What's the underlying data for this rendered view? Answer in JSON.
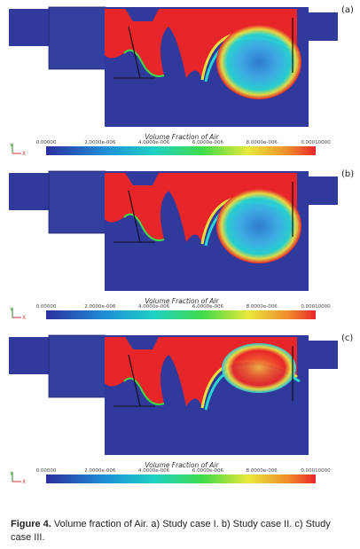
{
  "panels": [
    {
      "label": "(a)",
      "legend_title": "Volume Fraction of Air",
      "legend_ticks": [
        "0.00000",
        "2.0000e-006",
        "4.0000e-006",
        "6.0000e-006",
        "8.0000e-006",
        "0.00010000"
      ],
      "axes": [
        "Y",
        "X"
      ]
    },
    {
      "label": "(b)",
      "legend_title": "Volume Fraction of Air",
      "legend_ticks": [
        "0.00000",
        "2.0000e-006",
        "4.0000e-006",
        "6.0000e-006",
        "8.0000e-006",
        "0.00010000"
      ],
      "axes": [
        "Y",
        "X"
      ]
    },
    {
      "label": "(c)",
      "legend_title": "Volume Fraction of Air",
      "legend_ticks": [
        "0.00000",
        "2.0000e-006",
        "4.0000e-006",
        "6.0000e-006",
        "8.0000e-006",
        "0.00010000"
      ],
      "axes": [
        "Y",
        "X"
      ]
    }
  ],
  "caption": {
    "label": "Figure 4.",
    "text": "Volume fraction of Air. a) Study case I. b) Study case II. c) Study case III."
  }
}
